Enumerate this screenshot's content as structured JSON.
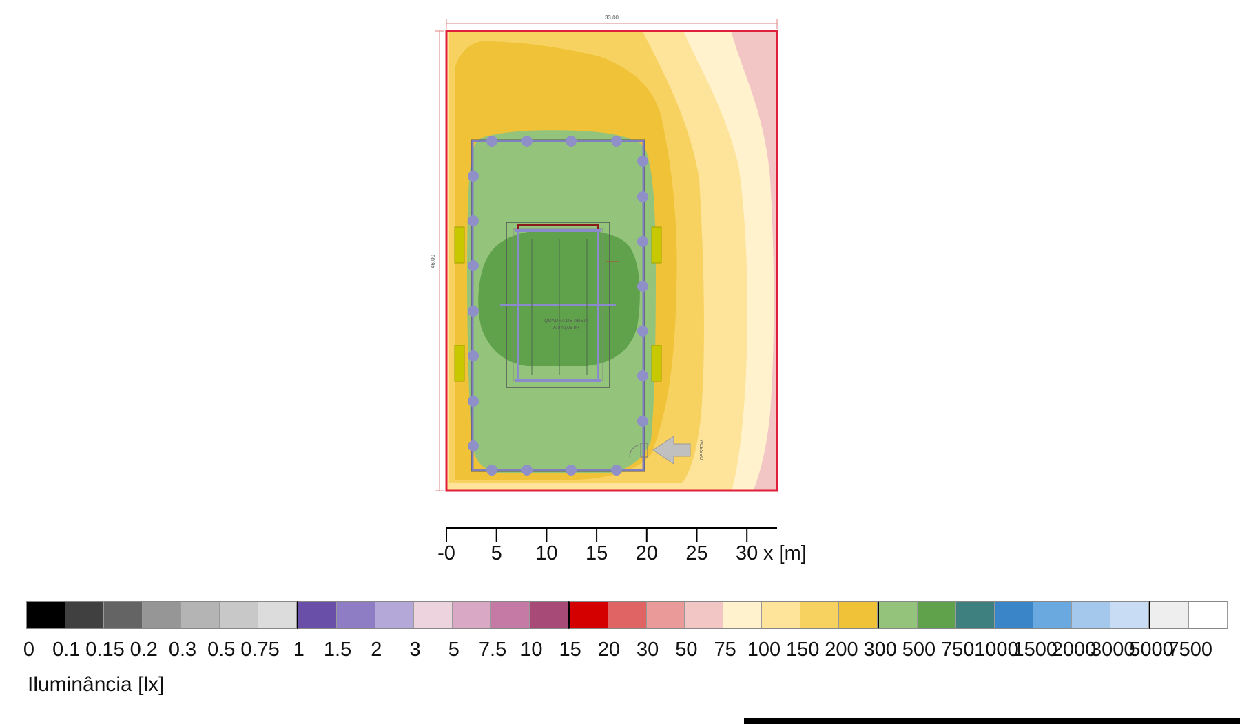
{
  "plan": {
    "width_dim": "33,00",
    "height_dim": "46,00",
    "court_label_1": "QUADRA DE AREIA",
    "court_label_2": "A:546,09 m²",
    "access_label": "ACESSO"
  },
  "x_axis": {
    "ticks": [
      "-0",
      "5",
      "10",
      "15",
      "20",
      "25",
      "30"
    ],
    "unit": "x [m]"
  },
  "legend": {
    "title": "Iluminância [lx]",
    "labels": [
      "0",
      "0.1",
      "0.15",
      "0.2",
      "0.3",
      "0.5",
      "0.75",
      "1",
      "1.5",
      "2",
      "3",
      "5",
      "7.5",
      "10",
      "15",
      "20",
      "30",
      "50",
      "75",
      "100",
      "150",
      "200",
      "300",
      "500",
      "750",
      "1000",
      "1500",
      "2000",
      "3000",
      "5000",
      "7500"
    ],
    "colors": [
      "#000000",
      "#404040",
      "#646464",
      "#969696",
      "#b4b4b4",
      "#c8c8c8",
      "#dcdcdc",
      "#6a4fa8",
      "#8e7cc4",
      "#b3a8d8",
      "#ecd3de",
      "#d8a8c4",
      "#c47aa4",
      "#a84a78",
      "#d40000",
      "#e06464",
      "#eb9a9a",
      "#f3c6c6",
      "#fff2cc",
      "#fde49a",
      "#f8d260",
      "#f0c238",
      "#94c47c",
      "#60a24c",
      "#3e8080",
      "#3a84c8",
      "#6aa8e0",
      "#a4c8ec",
      "#c8dcf4",
      "#eeeeee",
      "#ffffff"
    ]
  }
}
